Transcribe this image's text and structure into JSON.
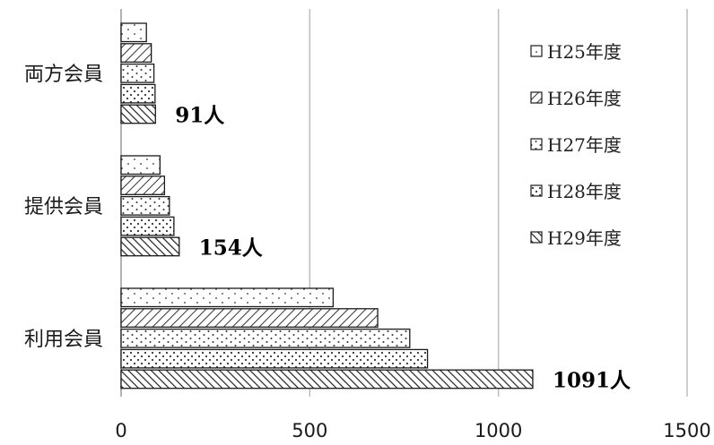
{
  "chart_data": {
    "type": "bar",
    "orientation": "horizontal",
    "categories": [
      "両方会員",
      "提供会員",
      "利用会員"
    ],
    "series": [
      {
        "name": "H25年度",
        "values": [
          67,
          103,
          562
        ],
        "pattern": "dots-sparse"
      },
      {
        "name": "H26年度",
        "values": [
          80,
          115,
          680
        ],
        "pattern": "hatch-back"
      },
      {
        "name": "H27年度",
        "values": [
          87,
          128,
          765
        ],
        "pattern": "dots-medium"
      },
      {
        "name": "H28年度",
        "values": [
          90,
          140,
          812
        ],
        "pattern": "dots-dense"
      },
      {
        "name": "H29年度",
        "values": [
          91,
          154,
          1091
        ],
        "pattern": "hatch-forward"
      }
    ],
    "data_labels": [
      "91人",
      "154人",
      "1091人"
    ],
    "xticks": [
      "0",
      "500",
      "1000",
      "1500"
    ],
    "xlim": [
      0,
      1500
    ],
    "grid": "vertical",
    "legend_position": "right"
  }
}
